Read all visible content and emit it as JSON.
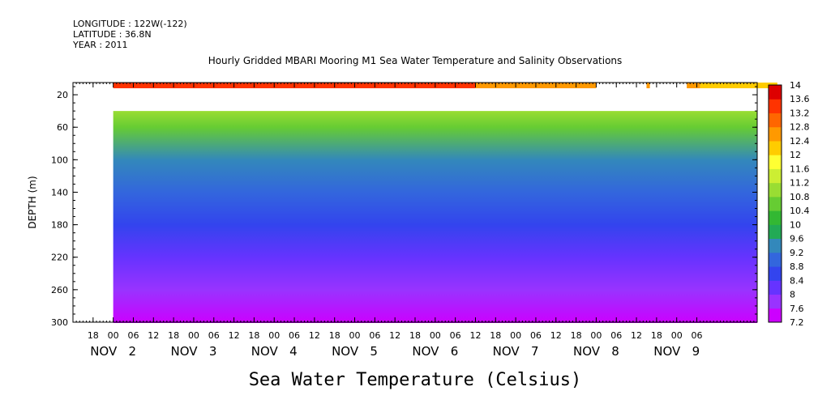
{
  "header": {
    "longitude": "LONGITUDE : 122W(-122)",
    "latitude": "LATITUDE : 36.8N",
    "year": "YEAR : 2011"
  },
  "chart_data": {
    "type": "heatmap",
    "title": "Hourly Gridded MBARI Mooring M1 Sea Water Temperature and Salinity Observations",
    "subtitle": "Sea Water Temperature (Celsius)",
    "ylabel": "DEPTH (m)",
    "xlabel": "",
    "ylim": [
      300,
      5
    ],
    "y_ticks": [
      20,
      60,
      100,
      140,
      180,
      220,
      260,
      300
    ],
    "x_time_range": [
      "2011-11-01T12:00",
      "2011-11-09T18:00"
    ],
    "x_tick_labels": [
      "18",
      "00",
      "06",
      "12",
      "18",
      "00",
      "06",
      "12",
      "18",
      "00",
      "06",
      "12",
      "18",
      "00",
      "06",
      "12",
      "18",
      "00",
      "06",
      "12",
      "18",
      "00",
      "06",
      "12",
      "18",
      "00",
      "06",
      "12",
      "18",
      "00",
      "06"
    ],
    "x_date_labels": [
      {
        "text": "NOV   2",
        "day": 2
      },
      {
        "text": "NOV   3",
        "day": 3
      },
      {
        "text": "NOV   4",
        "day": 4
      },
      {
        "text": "NOV   5",
        "day": 5
      },
      {
        "text": "NOV   6",
        "day": 6
      },
      {
        "text": "NOV   7",
        "day": 7
      },
      {
        "text": "NOV   8",
        "day": 8
      },
      {
        "text": "NOV   9",
        "day": 9
      }
    ],
    "colorbar": {
      "labels": [
        "14",
        "13.6",
        "13.2",
        "12.8",
        "12.4",
        "12",
        "11.6",
        "11.2",
        "10.8",
        "10.4",
        "10",
        "9.6",
        "9.2",
        "8.8",
        "8.4",
        "8",
        "7.6",
        "7.2"
      ],
      "range": [
        7.2,
        14
      ],
      "colors": [
        "#cc00ff",
        "#9933ff",
        "#6633ff",
        "#3344ee",
        "#3366dd",
        "#3388bb",
        "#22aa55",
        "#33b833",
        "#66cc33",
        "#99dd33",
        "#ccee33",
        "#ffff33",
        "#ffcc00",
        "#ff9900",
        "#ff6600",
        "#ff3300",
        "#dd0000"
      ]
    },
    "data_segments": [
      {
        "start_hour": 0,
        "end_hour": 108,
        "surface_temp": 13.4
      },
      {
        "start_hour": 108,
        "end_hour": 144,
        "surface_temp": 12.7
      },
      {
        "start_hour": 159,
        "end_hour": 160,
        "surface_temp": 12.6
      },
      {
        "start_hour": 171,
        "end_hour": 175,
        "surface_temp": 12.5
      },
      {
        "start_hour": 175,
        "end_hour": 198,
        "surface_temp": 12.0
      }
    ],
    "subsurface_profile": [
      {
        "depth": 40,
        "temp": 11.2
      },
      {
        "depth": 60,
        "temp": 10.6
      },
      {
        "depth": 100,
        "temp": 9.6
      },
      {
        "depth": 140,
        "temp": 9.0
      },
      {
        "depth": 180,
        "temp": 8.6
      },
      {
        "depth": 220,
        "temp": 8.2
      },
      {
        "depth": 260,
        "temp": 7.8
      },
      {
        "depth": 300,
        "temp": 7.4
      }
    ]
  }
}
